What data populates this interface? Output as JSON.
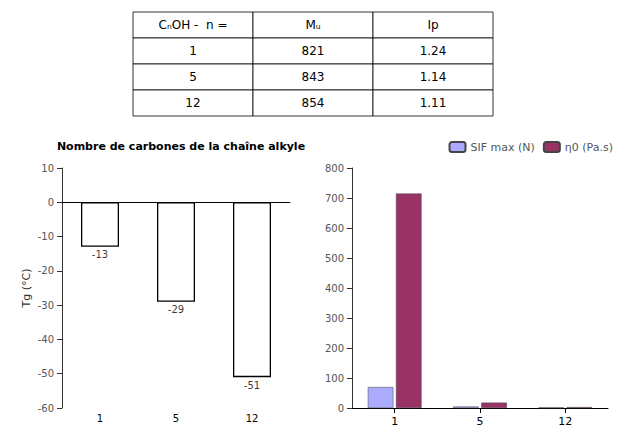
{
  "chart_data": [
    {
      "type": "table",
      "columns": [
        "CₙOH -  n =",
        "Mᵤ",
        "Ip"
      ],
      "rows": [
        [
          "1",
          "821",
          "1.24"
        ],
        [
          "5",
          "843",
          "1.14"
        ],
        [
          "12",
          "854",
          "1.11"
        ]
      ]
    },
    {
      "type": "bar",
      "title": "Nombre de carbones de la chaîne alkyle",
      "ylabel": "Tg (°C)",
      "categories": [
        "1",
        "5",
        "12"
      ],
      "values": [
        -13,
        -29,
        -51
      ],
      "color": "#ffffff",
      "ylim": [
        -60,
        10
      ],
      "yticks": [
        10,
        0,
        -10,
        -20,
        -30,
        -40,
        -50,
        -60
      ],
      "data_labels": true,
      "grid": false
    },
    {
      "type": "bar",
      "categories": [
        "1",
        "5",
        "12"
      ],
      "series": [
        {
          "name": "SIF max (N)",
          "color": "#aaaaff",
          "values": [
            70,
            5,
            2
          ]
        },
        {
          "name": "η0 (Pa.s)",
          "color": "#993366",
          "values": [
            715,
            18,
            3
          ]
        }
      ],
      "ylim": [
        0,
        800
      ],
      "yticks": [
        0,
        100,
        200,
        300,
        400,
        500,
        600,
        700,
        800
      ],
      "legend": "upper right",
      "grid": false
    }
  ]
}
